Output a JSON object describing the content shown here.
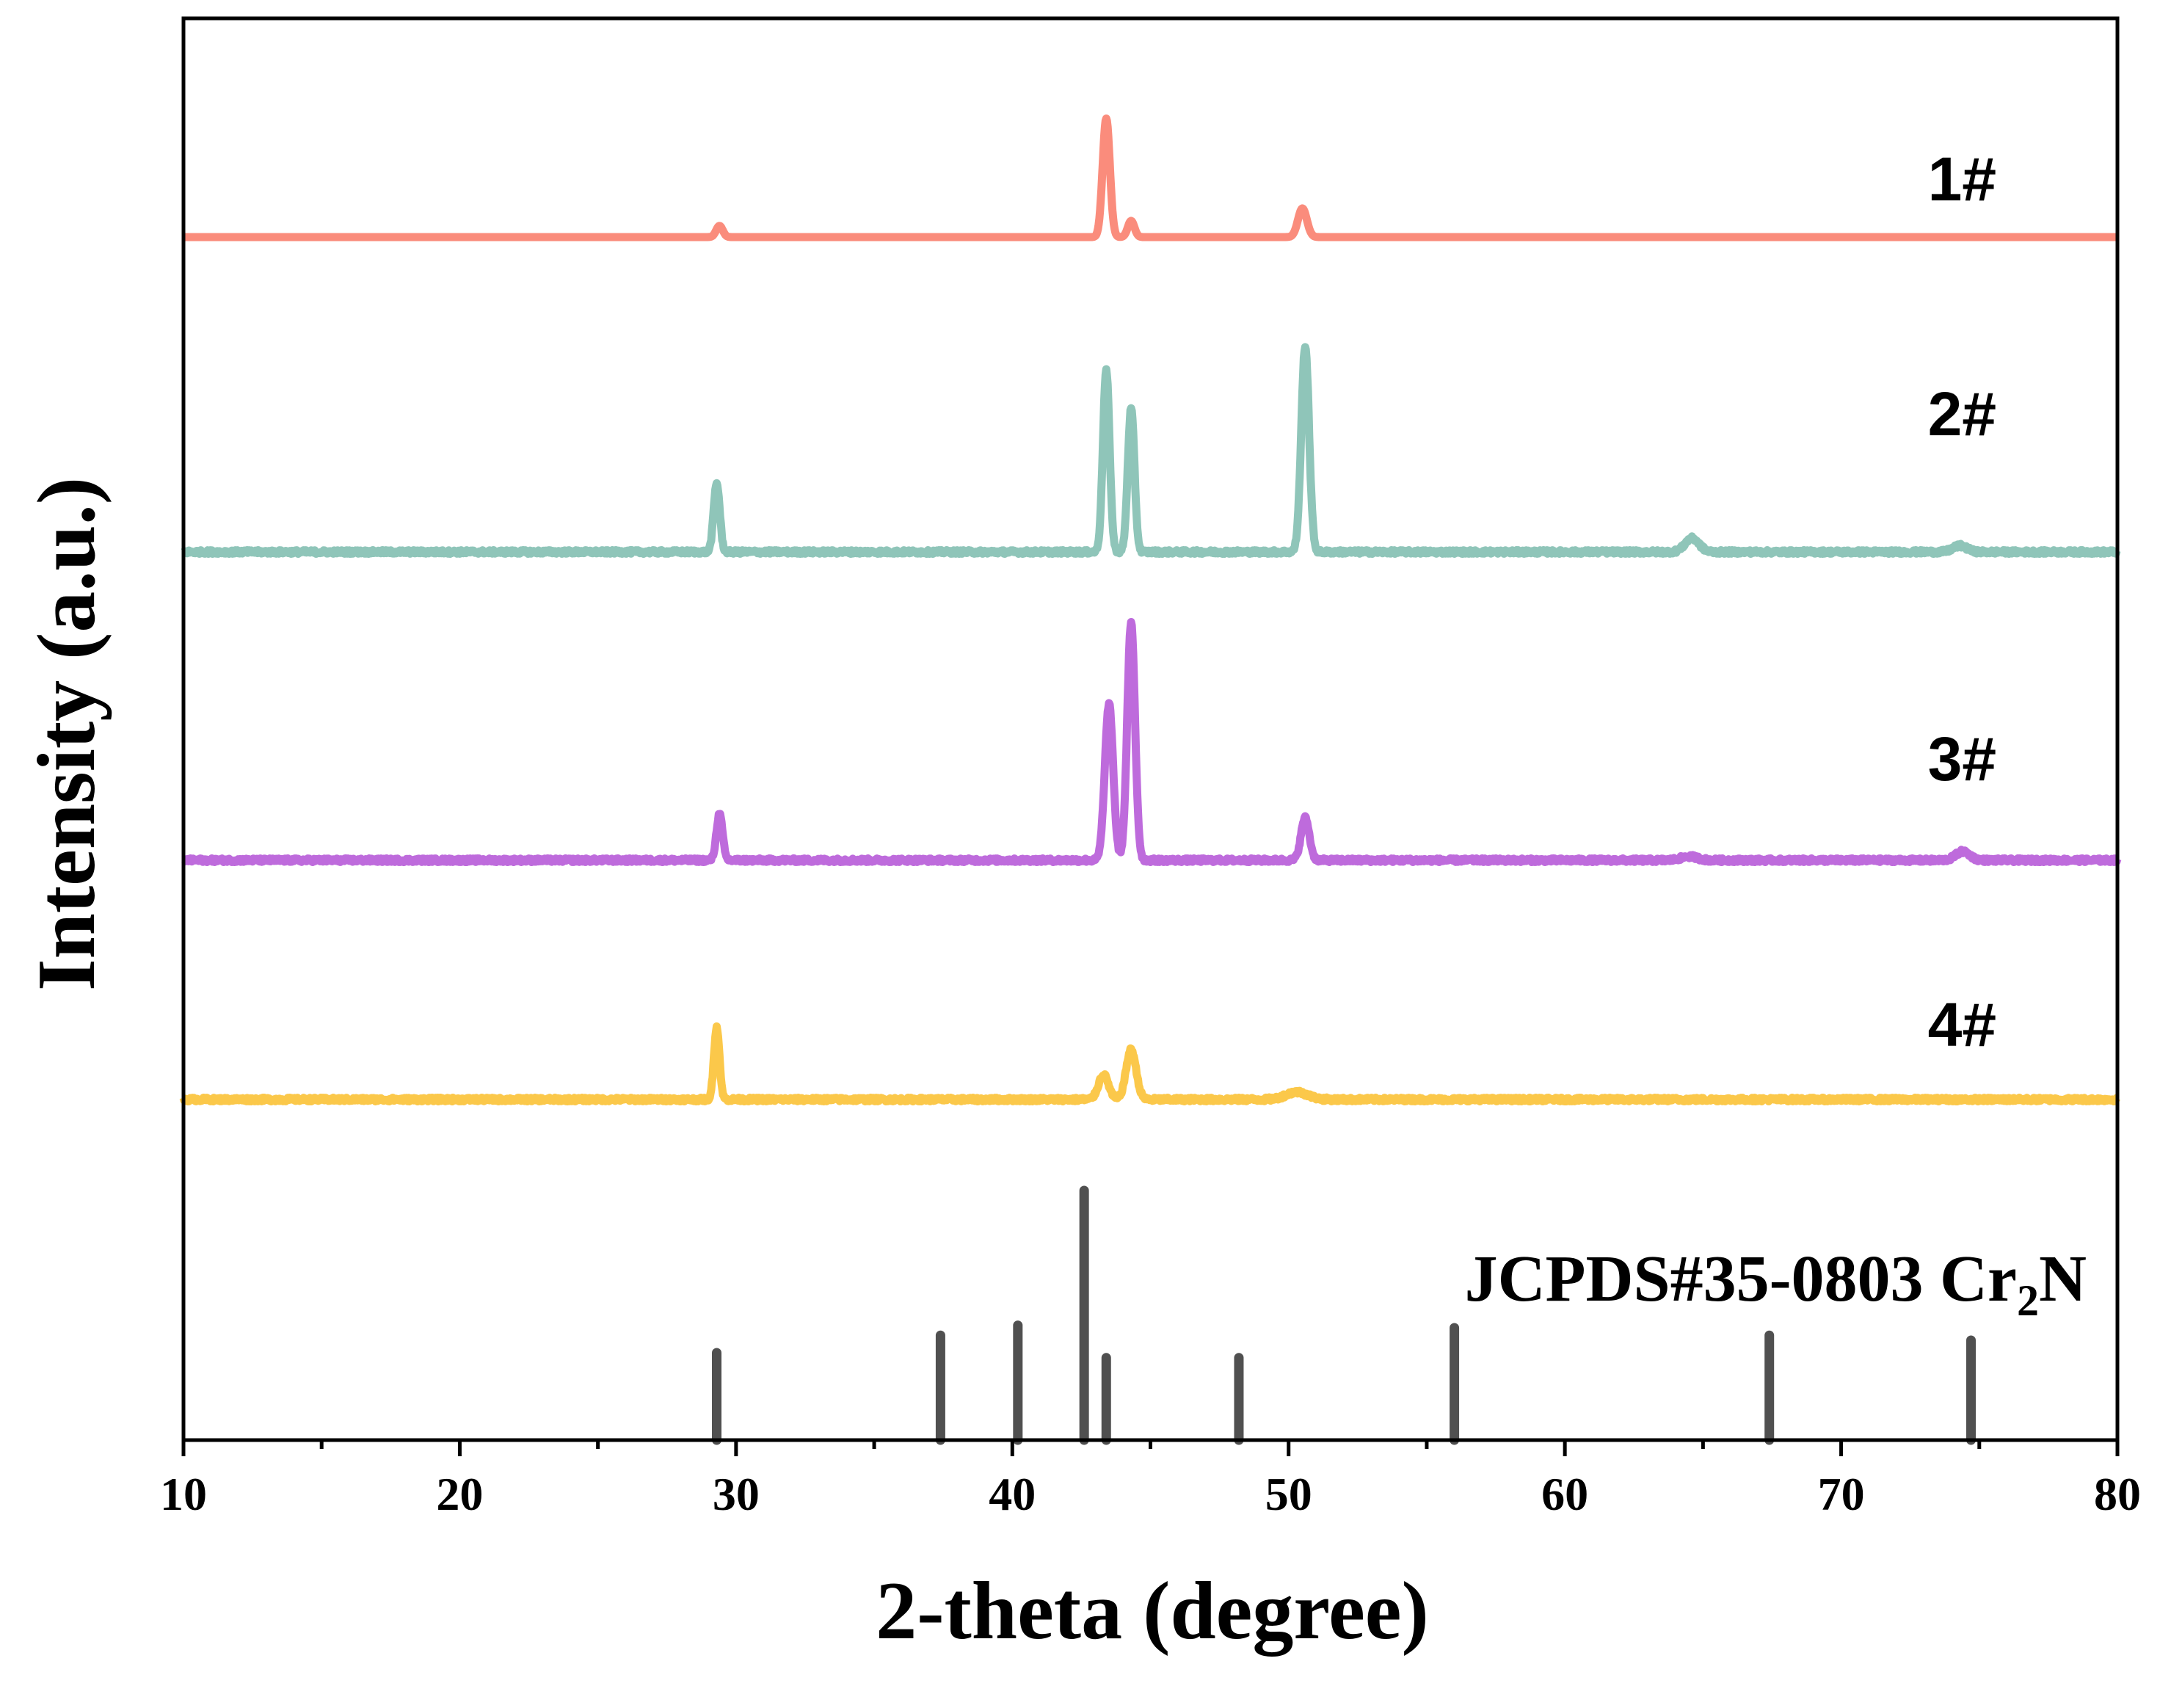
{
  "chart_data": {
    "type": "line",
    "xlabel": "2-theta (degree)",
    "ylabel": "Intensity (a.u.)",
    "xlim": [
      10,
      80
    ],
    "x_ticks": [
      10,
      20,
      30,
      40,
      50,
      60,
      70,
      80
    ],
    "grid": false,
    "y_ticks_shown": false,
    "series": [
      {
        "name": "1#",
        "color": "#FA8C7C",
        "baseline": 0,
        "noise": 0,
        "peaks": [
          {
            "x": 29.4,
            "height": 0.09,
            "width": 0.12
          },
          {
            "x": 43.4,
            "height": 0.95,
            "width": 0.13
          },
          {
            "x": 44.3,
            "height": 0.13,
            "width": 0.12
          },
          {
            "x": 50.5,
            "height": 0.23,
            "width": 0.16
          }
        ]
      },
      {
        "name": "2#",
        "color": "#8FC5B9",
        "baseline": 0,
        "noise": 0.03,
        "peaks": [
          {
            "x": 29.3,
            "height": 0.55,
            "width": 0.11
          },
          {
            "x": 43.4,
            "height": 1.45,
            "width": 0.12
          },
          {
            "x": 44.3,
            "height": 1.15,
            "width": 0.12
          },
          {
            "x": 50.6,
            "height": 1.65,
            "width": 0.14
          },
          {
            "x": 64.6,
            "height": 0.11,
            "width": 0.25
          },
          {
            "x": 74.3,
            "height": 0.05,
            "width": 0.25
          }
        ]
      },
      {
        "name": "3#",
        "color": "#BE6BDC",
        "baseline": 0,
        "noise": 0.03,
        "peaks": [
          {
            "x": 29.4,
            "height": 0.37,
            "width": 0.11
          },
          {
            "x": 43.5,
            "height": 1.25,
            "width": 0.15
          },
          {
            "x": 44.3,
            "height": 1.9,
            "width": 0.14
          },
          {
            "x": 50.6,
            "height": 0.34,
            "width": 0.15
          },
          {
            "x": 64.5,
            "height": 0.03,
            "width": 0.3
          },
          {
            "x": 74.4,
            "height": 0.07,
            "width": 0.25
          }
        ]
      },
      {
        "name": "4#",
        "color": "#FBC84A",
        "baseline": 0,
        "noise": 0.03,
        "peaks": [
          {
            "x": 29.3,
            "height": 0.58,
            "width": 0.1
          },
          {
            "x": 43.3,
            "height": 0.2,
            "width": 0.18
          },
          {
            "x": 44.3,
            "height": 0.4,
            "width": 0.18
          },
          {
            "x": 50.3,
            "height": 0.06,
            "width": 0.4
          }
        ]
      }
    ],
    "reference": {
      "name": "JCPDS#35-0803 Cr2N",
      "label_main": "JCPDS#35-0803 Cr",
      "label_sub": "2",
      "label_tail": "N",
      "color": "#505050",
      "lines": [
        {
          "x": 29.3,
          "intensity": 0.35
        },
        {
          "x": 37.4,
          "intensity": 0.42
        },
        {
          "x": 40.2,
          "intensity": 0.46
        },
        {
          "x": 42.6,
          "intensity": 1.0
        },
        {
          "x": 43.4,
          "intensity": 0.33
        },
        {
          "x": 48.2,
          "intensity": 0.33
        },
        {
          "x": 56.0,
          "intensity": 0.45
        },
        {
          "x": 67.4,
          "intensity": 0.42
        },
        {
          "x": 74.7,
          "intensity": 0.4
        }
      ]
    }
  }
}
